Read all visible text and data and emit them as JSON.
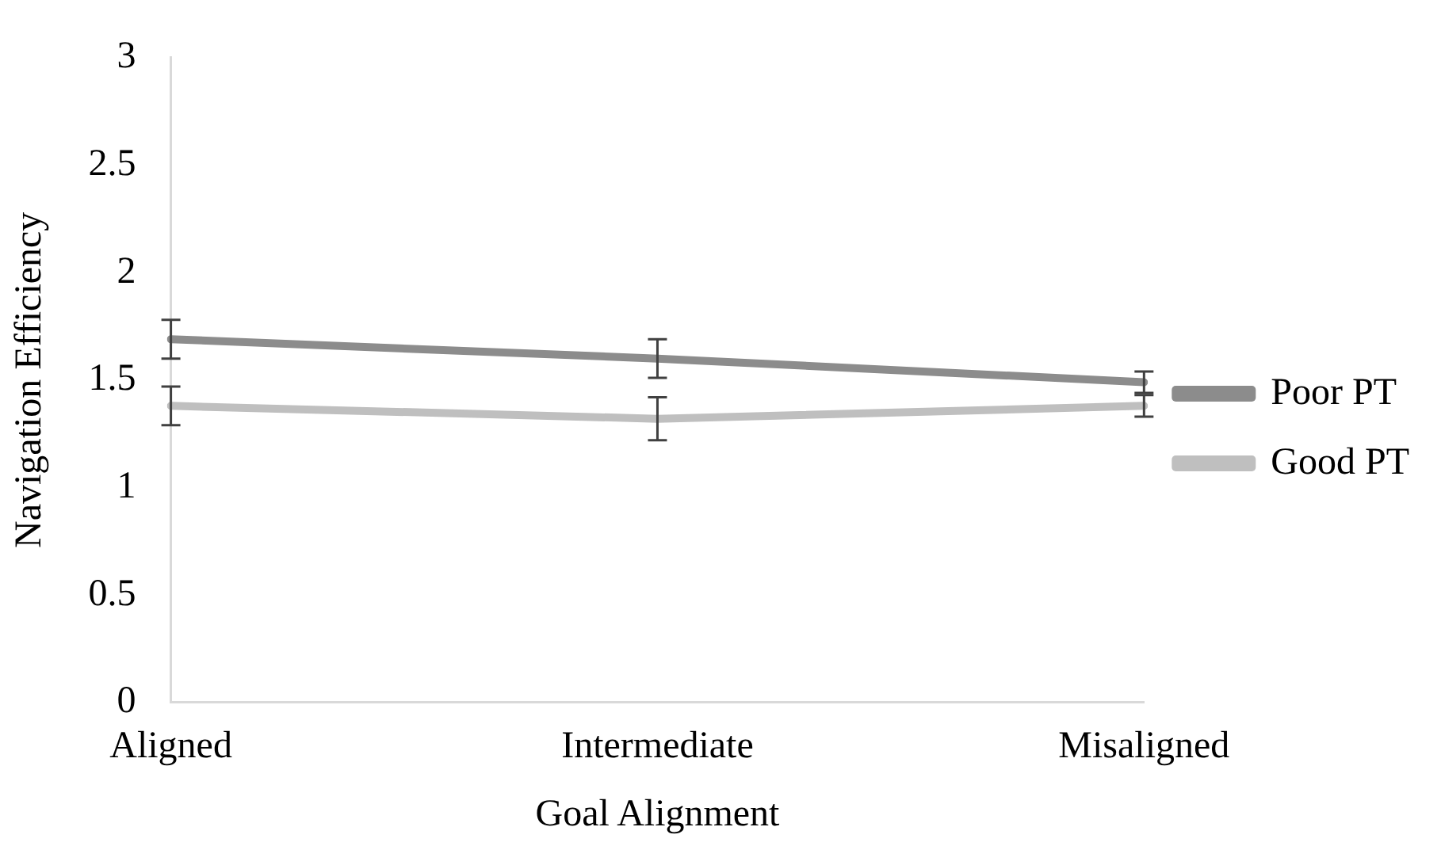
{
  "chart_data": {
    "type": "line",
    "xlabel": "Goal Alignment",
    "ylabel": "Navigation Efficiency",
    "categories": [
      "Aligned",
      "Intermediate",
      "Misaligned"
    ],
    "series": [
      {
        "name": "Poor PT",
        "color": "#8c8c8c",
        "values": [
          1.69,
          1.6,
          1.49
        ],
        "errors": [
          0.09,
          0.09,
          0.05
        ]
      },
      {
        "name": "Good PT",
        "color": "#bfbfbf",
        "values": [
          1.38,
          1.32,
          1.38
        ],
        "errors": [
          0.09,
          0.1,
          0.05
        ]
      }
    ],
    "ylim": [
      0,
      3
    ],
    "yticks": [
      0,
      0.5,
      1,
      1.5,
      2,
      2.5,
      3
    ],
    "grid": false,
    "legend": "right",
    "marker": "none"
  }
}
